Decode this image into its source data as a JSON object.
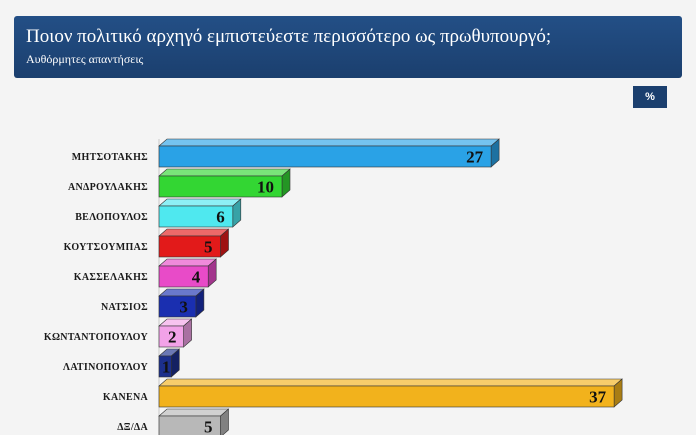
{
  "header": {
    "title": "Ποιον πολιτικό αρχηγό εμπιστεύεστε περισσότερο ως πρωθυπουργό;",
    "subtitle": "Αυθόρμητες απαντήσεις"
  },
  "unit_badge": "%",
  "chart_data": {
    "type": "bar",
    "orientation": "horizontal",
    "title": "Ποιον πολιτικό αρχηγό εμπιστεύεστε περισσότερο ως πρωθυπουργό;",
    "subtitle": "Αυθόρμητες απαντήσεις",
    "unit": "%",
    "categories": [
      "ΜΗΤΣΟΤΑΚΗΣ",
      "ΑΝΔΡΟΥΛΑΚΗΣ",
      "ΒΕΛΟΠΟΥΛΟΣ",
      "ΚΟΥΤΣΟΥΜΠΑΣ",
      "ΚΑΣΣΕΛΑΚΗΣ",
      "ΝΑΤΣΙΟΣ",
      "ΚΩΝΤΑΝΤΟΠΟΥΛΟΥ",
      "ΛΑΤΙΝΟΠΟΥΛΟΥ",
      "ΚΑΝΕΝΑ",
      "ΔΞ/ΔΑ"
    ],
    "values": [
      27,
      10,
      6,
      5,
      4,
      3,
      2,
      1,
      37,
      5
    ],
    "colors": [
      "#2aa2e6",
      "#33d633",
      "#4fe8ef",
      "#e21a1a",
      "#e84bc8",
      "#1a2fb0",
      "#f2a2e8",
      "#1c2f8c",
      "#f2b21c",
      "#b8b8b8"
    ],
    "xlim": [
      0,
      37
    ],
    "grid": false,
    "legend": "none"
  }
}
